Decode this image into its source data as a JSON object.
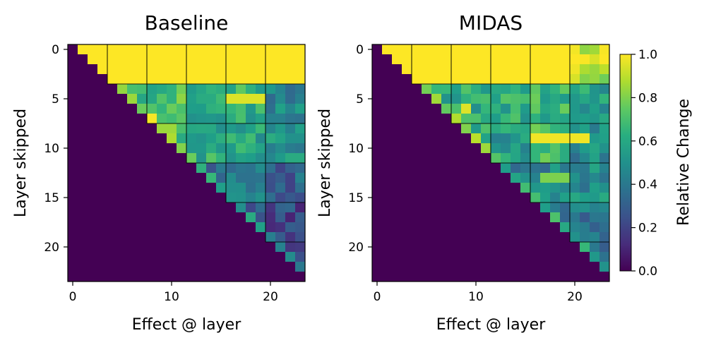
{
  "chart_data": [
    {
      "type": "heatmap",
      "title": "Baseline",
      "xlabel": "Effect @ layer",
      "ylabel": "Layer skipped",
      "xticks": [
        0,
        10,
        20
      ],
      "yticks": [
        0,
        5,
        10,
        15,
        20
      ],
      "grid_size": 24,
      "block_size": 4,
      "vmin": 0.0,
      "vmax": 1.0,
      "colormap": "viridis",
      "below_diagonal_value": 0.0,
      "block_values": [
        [
          1.0,
          1.0,
          1.0,
          1.0,
          1.0,
          1.0
        ],
        [
          null,
          0.62,
          0.7,
          0.62,
          0.62,
          0.46
        ],
        [
          null,
          null,
          0.58,
          0.62,
          0.58,
          0.52
        ],
        [
          null,
          null,
          null,
          0.38,
          0.38,
          0.32
        ],
        [
          null,
          null,
          null,
          null,
          0.32,
          0.22
        ],
        [
          null,
          null,
          null,
          null,
          null,
          0.22
        ]
      ],
      "highlights": [
        {
          "row": 5,
          "col_from": 16,
          "col_to": 19,
          "value": 0.95
        },
        {
          "row": 8,
          "col_from": 9,
          "col_to": 10,
          "value": 0.85
        }
      ]
    },
    {
      "type": "heatmap",
      "title": "MIDAS",
      "xlabel": "Effect @ layer",
      "ylabel": "Layer skipped",
      "xticks": [
        0,
        10,
        20
      ],
      "yticks": [
        0,
        5,
        10,
        15,
        20
      ],
      "grid_size": 24,
      "block_size": 4,
      "vmin": 0.0,
      "vmax": 1.0,
      "colormap": "viridis",
      "below_diagonal_value": 0.0,
      "block_values": [
        [
          1.0,
          1.0,
          1.0,
          1.0,
          1.0,
          0.9
        ],
        [
          null,
          0.56,
          0.62,
          0.62,
          0.66,
          0.58
        ],
        [
          null,
          null,
          0.6,
          0.56,
          0.72,
          0.48
        ],
        [
          null,
          null,
          null,
          0.45,
          0.45,
          0.48
        ],
        [
          null,
          null,
          null,
          null,
          0.42,
          0.4
        ],
        [
          null,
          null,
          null,
          null,
          null,
          0.4
        ]
      ],
      "highlights": [
        {
          "row": 9,
          "col_from": 16,
          "col_to": 21,
          "value": 0.98
        },
        {
          "row": 6,
          "col_from": 9,
          "col_to": 9,
          "value": 0.95
        },
        {
          "row": 13,
          "col_from": 17,
          "col_to": 19,
          "value": 0.8
        }
      ]
    }
  ],
  "colorbar": {
    "label": "Relative Change",
    "ticks": [
      "0.0",
      "0.2",
      "0.4",
      "0.6",
      "0.8",
      "1.0"
    ]
  }
}
